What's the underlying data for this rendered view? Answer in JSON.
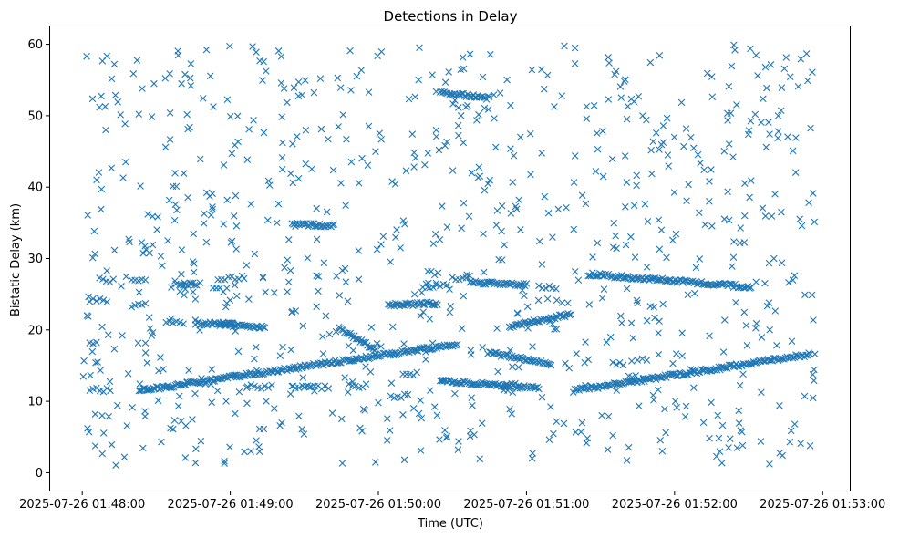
{
  "chart_data": {
    "type": "scatter",
    "title": "Detections in Delay",
    "xlabel": "Time (UTC)",
    "ylabel": "Bistatic Delay (km)",
    "marker": "x",
    "color": "#1f77b4",
    "grid": false,
    "legend": "none",
    "xlim": [
      "2025-07-26 01:47:47",
      "2025-07-26 01:53:11"
    ],
    "ylim": [
      -2.5,
      62.5
    ],
    "x_ticks": [
      "2025-07-26 01:48:00",
      "2025-07-26 01:49:00",
      "2025-07-26 01:50:00",
      "2025-07-26 01:51:00",
      "2025-07-26 01:52:00",
      "2025-07-26 01:53:00"
    ],
    "y_ticks": [
      0,
      10,
      20,
      30,
      40,
      50,
      60
    ],
    "series": [
      {
        "description_note": "",
        "tracks": [
          {
            "x": [
              "2025-07-26 01:48:23",
              "2025-07-26 01:50:32"
            ],
            "y": [
              11.5,
              18.0
            ]
          },
          {
            "x": [
              "2025-07-26 01:51:19",
              "2025-07-26 01:52:55"
            ],
            "y": [
              11.5,
              16.6
            ]
          },
          {
            "x": [
              "2025-07-26 01:51:25",
              "2025-07-26 01:52:31"
            ],
            "y": [
              27.8,
              26.0
            ]
          },
          {
            "x": [
              "2025-07-26 01:50:53",
              "2025-07-26 01:51:18"
            ],
            "y": [
              20.5,
              22.2
            ]
          },
          {
            "x": [
              "2025-07-26 01:50:25",
              "2025-07-26 01:51:05"
            ],
            "y": [
              12.9,
              11.8
            ]
          },
          {
            "x": [
              "2025-07-26 01:49:44",
              "2025-07-26 01:49:59"
            ],
            "y": [
              20.3,
              17.2
            ]
          },
          {
            "x": [
              "2025-07-26 01:50:04",
              "2025-07-26 01:50:24"
            ],
            "y": [
              23.5,
              23.7
            ]
          },
          {
            "x": [
              "2025-07-26 01:50:25",
              "2025-07-26 01:50:45"
            ],
            "y": [
              53.2,
              52.5
            ]
          },
          {
            "x": [
              "2025-07-26 01:48:46",
              "2025-07-26 01:49:01"
            ],
            "y": [
              20.9,
              20.8
            ]
          },
          {
            "x": [
              "2025-07-26 01:48:56",
              "2025-07-26 01:49:14"
            ],
            "y": [
              20.9,
              20.4
            ]
          },
          {
            "x": [
              "2025-07-26 01:49:25",
              "2025-07-26 01:49:42"
            ],
            "y": [
              34.8,
              34.6
            ]
          },
          {
            "x": [
              "2025-07-26 01:50:45",
              "2025-07-26 01:51:10"
            ],
            "y": [
              16.8,
              15.2
            ]
          },
          {
            "x": [
              "2025-07-26 01:50:37",
              "2025-07-26 01:51:00"
            ],
            "y": [
              26.7,
              26.3
            ]
          }
        ]
      }
    ],
    "scatter_density_note": ""
  }
}
